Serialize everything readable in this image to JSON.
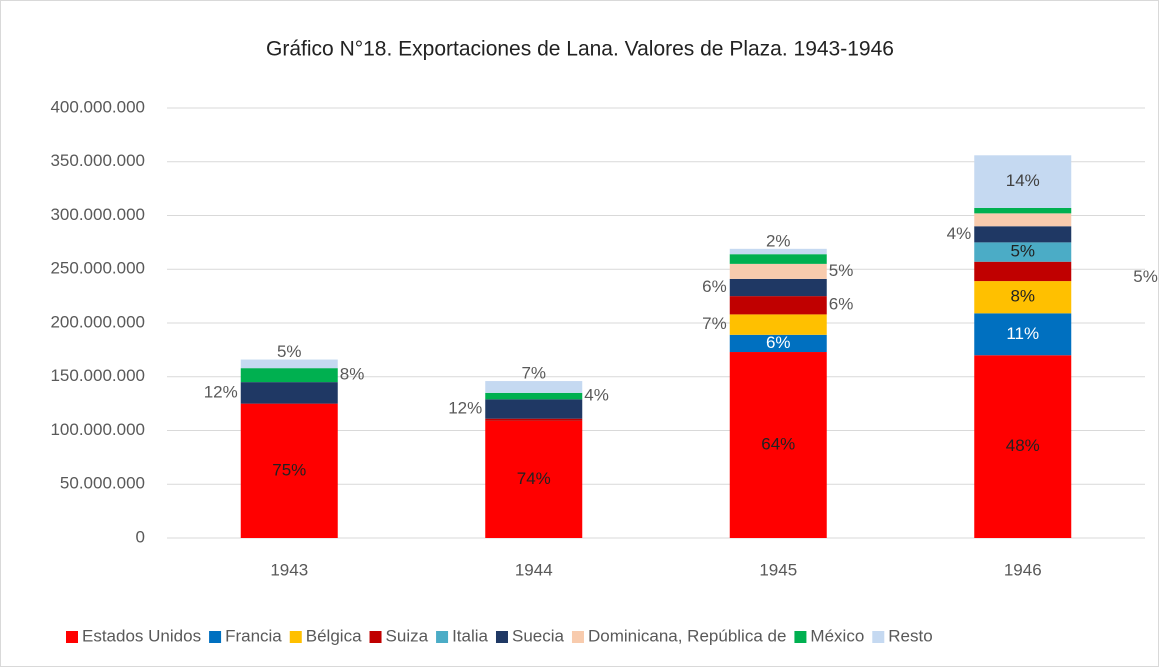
{
  "chart_data": {
    "type": "stacked_bar",
    "title": "Gráfico N°18. Exportaciones de Lana. Valores de Plaza. 1943-1946",
    "categories": [
      "1943",
      "1944",
      "1945",
      "1946"
    ],
    "ylim": [
      0,
      400000000
    ],
    "yticks": [
      0,
      {
        "value": 50000000,
        "label": "50.000.000"
      },
      {
        "value": 100000000,
        "label": "100.000.000"
      },
      {
        "value": 150000000,
        "label": "150.000.000"
      },
      {
        "value": 200000000,
        "label": "200.000.000"
      },
      {
        "value": 250000000,
        "label": "250.000.000"
      },
      {
        "value": 300000000,
        "label": "300.000.000"
      },
      {
        "value": 350000000,
        "label": "350.000.000"
      },
      {
        "value": 400000000,
        "label": "400.000.000"
      }
    ],
    "grid": true,
    "legend": "bottom",
    "series": [
      {
        "name": "Estados Unidos",
        "color": "#ff0000",
        "values": [
          125000000,
          109000000,
          173000000,
          170000000
        ],
        "value_labels": [
          "75%",
          "74%",
          "64%",
          "48%"
        ]
      },
      {
        "name": "Francia",
        "color": "#0070c0",
        "values": [
          0,
          0,
          16000000,
          39000000
        ],
        "value_labels": [
          null,
          null,
          "6%",
          "11%"
        ]
      },
      {
        "name": "Bélgica",
        "color": "#ffc000",
        "values": [
          0,
          0,
          19000000,
          30000000
        ],
        "value_labels": [
          null,
          null,
          "7%",
          "8%"
        ]
      },
      {
        "name": "Suiza",
        "color": "#c00000",
        "values": [
          0,
          2000000,
          17000000,
          18000000
        ],
        "value_labels": [
          null,
          null,
          "6%",
          "5%"
        ]
      },
      {
        "name": "Italia",
        "color": "#4bacc6",
        "values": [
          0,
          0,
          0,
          18000000
        ],
        "value_labels": [
          null,
          null,
          null,
          "5%"
        ]
      },
      {
        "name": "Suecia",
        "color": "#1f3864",
        "values": [
          20000000,
          18000000,
          16000000,
          15000000
        ],
        "value_labels": [
          "12%",
          "12%",
          "6%",
          "4%"
        ]
      },
      {
        "name": "Dominicana, República de",
        "color": "#f8cbad",
        "values": [
          0,
          0,
          14000000,
          12000000
        ],
        "value_labels": [
          null,
          null,
          "5%",
          null
        ]
      },
      {
        "name": "México",
        "color": "#00b050",
        "values": [
          13000000,
          6000000,
          9000000,
          5000000
        ],
        "value_labels": [
          "8%",
          "4%",
          null,
          null
        ]
      },
      {
        "name": "Resto",
        "color": "#c5d9f1",
        "values": [
          8000000,
          11000000,
          5000000,
          49000000
        ],
        "value_labels": [
          "5%",
          "7%",
          "2%",
          "14%"
        ]
      }
    ]
  }
}
